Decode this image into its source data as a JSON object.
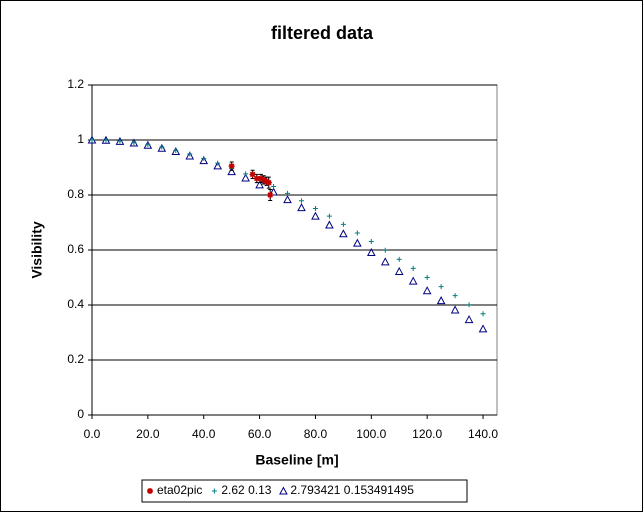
{
  "chart_data": {
    "type": "scatter",
    "title": "filtered data",
    "x_label": "Baseline [m]",
    "y_label": "Visibility",
    "xlim": [
      0,
      145
    ],
    "ylim": [
      0,
      1.2
    ],
    "xticks": [
      {
        "value": 0,
        "label": "0.0"
      },
      {
        "value": 20,
        "label": "20.0"
      },
      {
        "value": 40,
        "label": "40.0"
      },
      {
        "value": 60,
        "label": "60.0"
      },
      {
        "value": 80,
        "label": "80.0"
      },
      {
        "value": 100,
        "label": "100.0"
      },
      {
        "value": 120,
        "label": "120.0"
      },
      {
        "value": 140,
        "label": "140.0"
      }
    ],
    "yticks": [
      0,
      0.2,
      0.4,
      0.6,
      0.8,
      1,
      1.2
    ],
    "grid": true,
    "legend": "bottom",
    "series": [
      {
        "name": "eta02pic",
        "color": "#c00000",
        "marker": "star",
        "x": [
          50,
          57.5,
          59,
          60.5,
          61.5,
          62.5,
          63.3,
          63.8
        ],
        "values": [
          0.905,
          0.875,
          0.86,
          0.86,
          0.855,
          0.85,
          0.845,
          0.8
        ],
        "errors": [
          0.015,
          0.015,
          0.015,
          0.015,
          0.015,
          0.015,
          0.02,
          0.02
        ]
      },
      {
        "name": "2.62 0.13",
        "color": "#008080",
        "marker": "plus",
        "x": [
          0,
          5,
          10,
          15,
          20,
          25,
          30,
          35,
          40,
          45,
          50,
          55,
          60,
          65,
          70,
          75,
          80,
          85,
          90,
          95,
          100,
          105,
          110,
          115,
          120,
          125,
          130,
          135,
          140
        ],
        "values": [
          1,
          0.999,
          0.996,
          0.99,
          0.983,
          0.974,
          0.962,
          0.949,
          0.933,
          0.916,
          0.897,
          0.877,
          0.855,
          0.831,
          0.806,
          0.779,
          0.751,
          0.723,
          0.693,
          0.662,
          0.631,
          0.599,
          0.566,
          0.533,
          0.5,
          0.467,
          0.434,
          0.401,
          0.368
        ]
      },
      {
        "name": "2.793421 0.153491495",
        "color": "#000080",
        "marker": "triangle",
        "x": [
          0,
          5,
          10,
          15,
          20,
          25,
          30,
          35,
          40,
          45,
          50,
          55,
          60,
          65,
          70,
          75,
          80,
          85,
          90,
          95,
          100,
          105,
          110,
          115,
          120,
          125,
          130,
          135,
          140
        ],
        "values": [
          1,
          0.999,
          0.995,
          0.989,
          0.981,
          0.97,
          0.958,
          0.942,
          0.925,
          0.906,
          0.885,
          0.862,
          0.837,
          0.811,
          0.783,
          0.754,
          0.723,
          0.691,
          0.659,
          0.625,
          0.591,
          0.557,
          0.522,
          0.487,
          0.452,
          0.416,
          0.382,
          0.347,
          0.313
        ]
      }
    ]
  }
}
